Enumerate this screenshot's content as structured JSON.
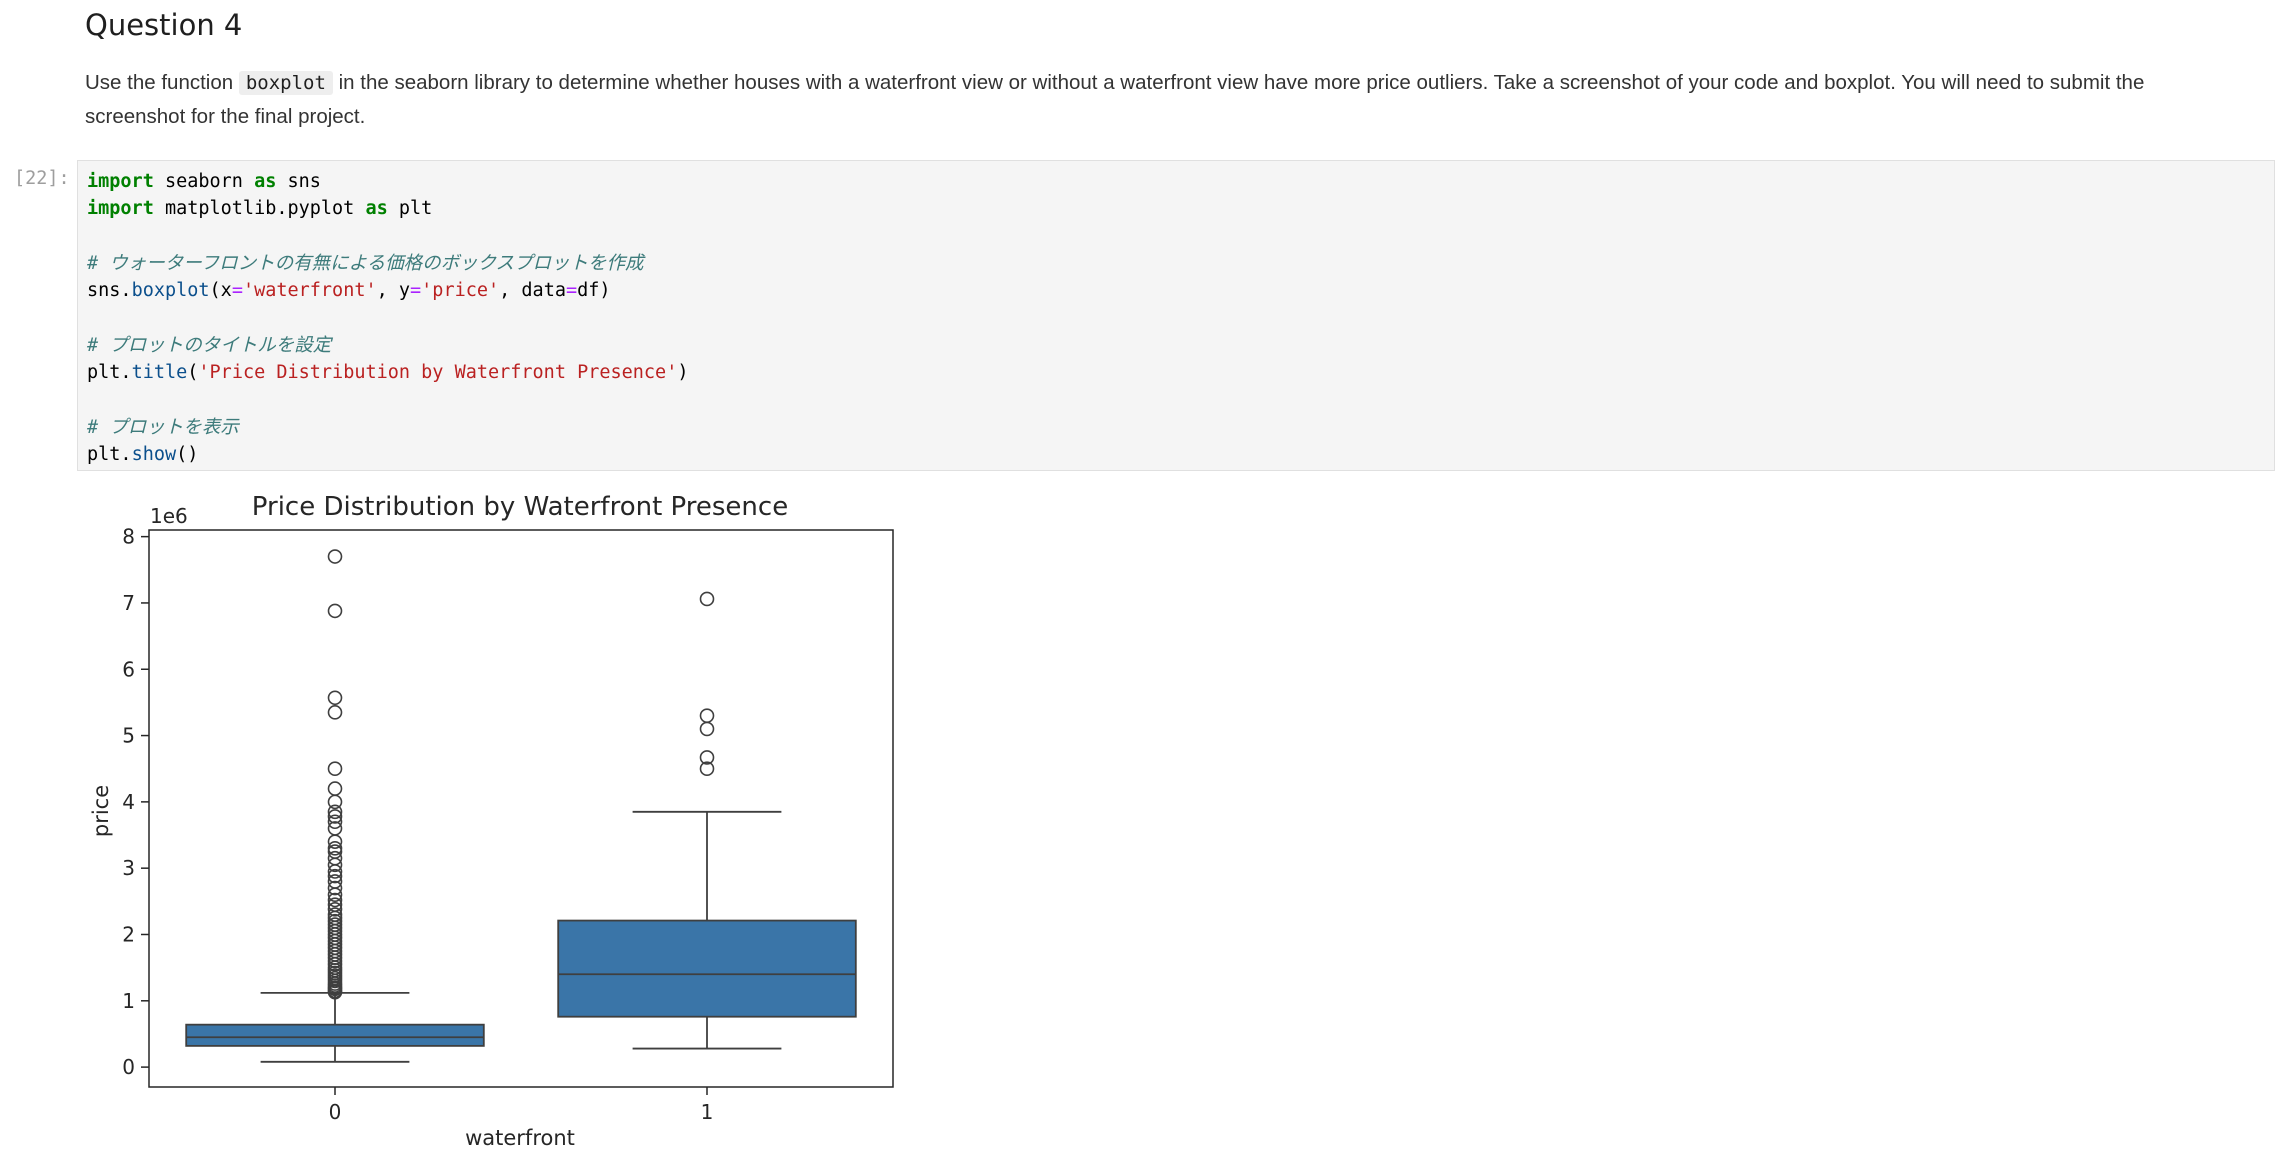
{
  "markdown": {
    "heading": "Question 4",
    "para_before": "Use the function ",
    "inline_code": "boxplot",
    "para_after": " in the seaborn library to determine whether houses with a waterfront view or without a waterfront view have more price outliers. Take a screenshot of your code and boxplot. You will need to submit the screenshot for the final project."
  },
  "code_cell": {
    "prompt": "[22]:",
    "lines": [
      [
        {
          "t": "import",
          "c": "kw"
        },
        {
          "t": " seaborn "
        },
        {
          "t": "as",
          "c": "kw"
        },
        {
          "t": " sns"
        }
      ],
      [
        {
          "t": "import",
          "c": "kw"
        },
        {
          "t": " matplotlib.pyplot "
        },
        {
          "t": "as",
          "c": "kw"
        },
        {
          "t": " plt"
        }
      ],
      [],
      [
        {
          "t": "# ウォーターフロントの有無による価格のボックスプロットを作成",
          "c": "cm"
        }
      ],
      [
        {
          "t": "sns."
        },
        {
          "t": "boxplot",
          "c": "fn"
        },
        {
          "t": "(x"
        },
        {
          "t": "=",
          "c": "op"
        },
        {
          "t": "'waterfront'",
          "c": "str"
        },
        {
          "t": ", y"
        },
        {
          "t": "=",
          "c": "op"
        },
        {
          "t": "'price'",
          "c": "str"
        },
        {
          "t": ", data"
        },
        {
          "t": "=",
          "c": "op"
        },
        {
          "t": "df)"
        }
      ],
      [],
      [
        {
          "t": "# プロットのタイトルを設定",
          "c": "cm"
        }
      ],
      [
        {
          "t": "plt."
        },
        {
          "t": "title",
          "c": "fn"
        },
        {
          "t": "("
        },
        {
          "t": "'Price Distribution by Waterfront Presence'",
          "c": "str"
        },
        {
          "t": ")"
        }
      ],
      [],
      [
        {
          "t": "# プロットを表示",
          "c": "cm"
        }
      ],
      [
        {
          "t": "plt."
        },
        {
          "t": "show",
          "c": "fn"
        },
        {
          "t": "()"
        }
      ]
    ]
  },
  "chart_data": {
    "type": "box",
    "title": "Price Distribution by Waterfront Presence",
    "xlabel": "waterfront",
    "ylabel": "price",
    "offset_label": "1e6",
    "categories": [
      "0",
      "1"
    ],
    "ylim": [
      -0.3,
      8.1
    ],
    "yticks": [
      0,
      1,
      2,
      3,
      4,
      5,
      6,
      7,
      8
    ],
    "box_color": "#3a75a8",
    "boxes": [
      {
        "category": "0",
        "whisker_low": 0.08,
        "q1": 0.32,
        "median": 0.45,
        "q3": 0.64,
        "whisker_high": 1.12,
        "outliers": [
          1.13,
          1.15,
          1.18,
          1.2,
          1.23,
          1.26,
          1.3,
          1.34,
          1.38,
          1.42,
          1.46,
          1.5,
          1.55,
          1.6,
          1.65,
          1.7,
          1.75,
          1.8,
          1.85,
          1.9,
          1.95,
          2.0,
          2.05,
          2.1,
          2.15,
          2.2,
          2.25,
          2.3,
          2.38,
          2.45,
          2.52,
          2.6,
          2.7,
          2.8,
          2.88,
          2.95,
          3.05,
          3.15,
          3.25,
          3.3,
          3.4,
          3.6,
          3.7,
          3.78,
          3.85,
          4.0,
          4.2,
          4.5,
          5.35,
          5.57,
          6.88,
          7.7
        ]
      },
      {
        "category": "1",
        "whisker_low": 0.28,
        "q1": 0.76,
        "median": 1.4,
        "q3": 2.21,
        "whisker_high": 3.85,
        "outliers": [
          4.5,
          4.67,
          5.1,
          5.3,
          7.06
        ]
      }
    ]
  }
}
